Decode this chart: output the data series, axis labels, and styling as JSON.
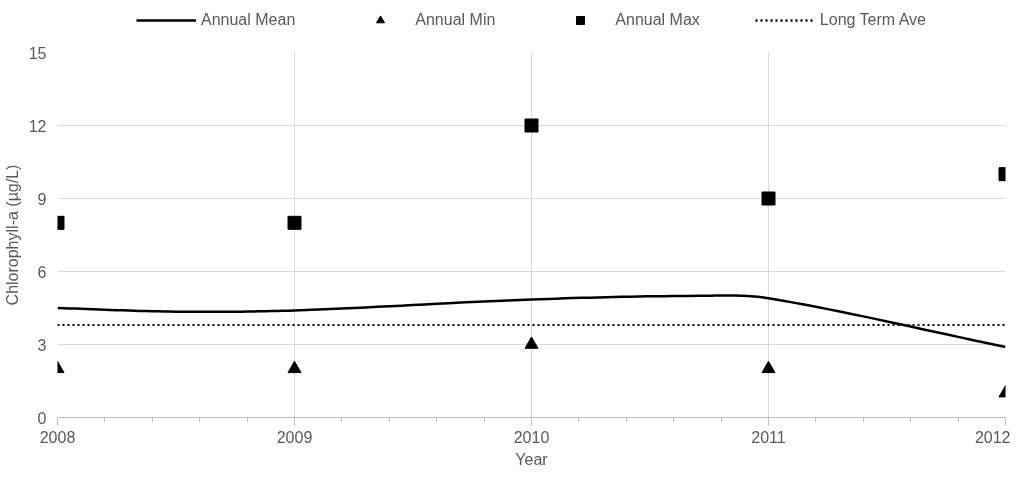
{
  "chart_data": {
    "type": "line",
    "xlabel": "Year",
    "ylabel": "Chlorophyll-a (µg/L)",
    "xlim": [
      2008,
      2012
    ],
    "xticks": [
      2008,
      2009,
      2010,
      2011,
      2012
    ],
    "ylim": [
      0,
      15
    ],
    "yticks": [
      0,
      3,
      6,
      9,
      12,
      15
    ],
    "grid": true,
    "legend": "top",
    "series": [
      {
        "name": "Annual Mean",
        "marker": "none",
        "color": "#000000",
        "line_style": "solid",
        "x": [
          2008,
          2008.5,
          2009,
          2010,
          2010.7,
          2011,
          2012
        ],
        "values": [
          4.5,
          4.35,
          4.4,
          4.85,
          5.0,
          4.9,
          2.9
        ]
      },
      {
        "name": "Annual Min",
        "type": "scatter",
        "color": "#000000",
        "marker": "triangle",
        "x": [
          2008,
          2009,
          2010,
          2011,
          2012
        ],
        "values": [
          2,
          2,
          3,
          2,
          1
        ]
      },
      {
        "name": "Annual Max",
        "type": "scatter",
        "color": "#000000",
        "marker": "square",
        "x": [
          2008,
          2009,
          2010,
          2011,
          2012
        ],
        "values": [
          8,
          8,
          12,
          9,
          10
        ]
      }
    ],
    "ref_lines": [
      {
        "axis": "y",
        "value": 3.8,
        "label": "Long Term Ave",
        "color": "#000000",
        "line_style": "dotted"
      }
    ]
  }
}
